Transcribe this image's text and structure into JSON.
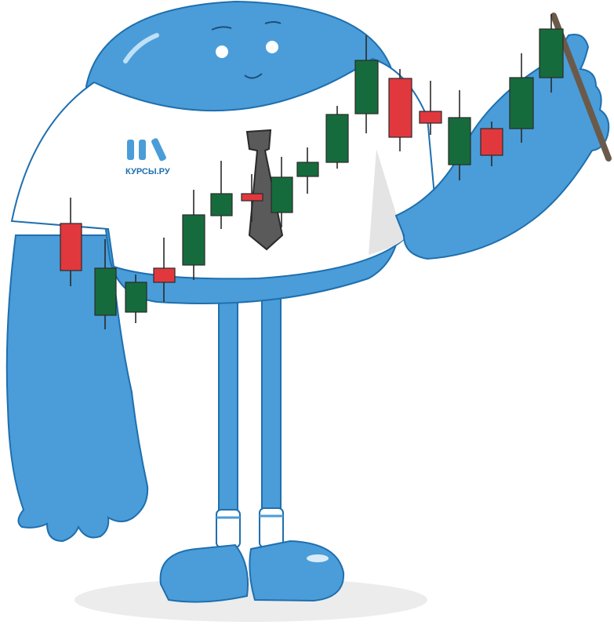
{
  "logo": {
    "text": "КУРСЫ.РУ"
  }
}
